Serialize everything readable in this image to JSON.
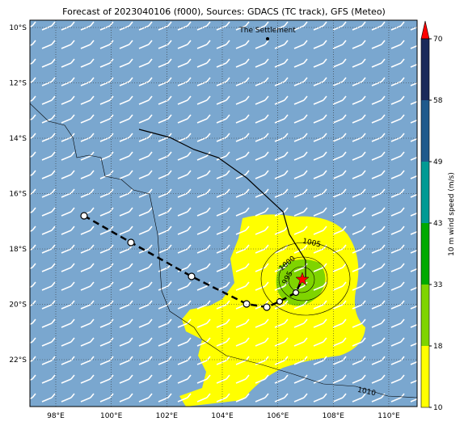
{
  "title": "Forecast of 2023040106 (f000), Sources: GDACS (TC track), GFS (Meteo)",
  "map": {
    "lat_ticks": [
      {
        "value": -10,
        "label": "10°S"
      },
      {
        "value": -12,
        "label": "12°S"
      },
      {
        "value": -14,
        "label": "14°S"
      },
      {
        "value": -16,
        "label": "16°S"
      },
      {
        "value": -18,
        "label": "18°S"
      },
      {
        "value": -20,
        "label": "20°S"
      },
      {
        "value": -22,
        "label": "22°S"
      }
    ],
    "lon_ticks": [
      {
        "value": 98,
        "label": "98°E"
      },
      {
        "value": 100,
        "label": "100°E"
      },
      {
        "value": 102,
        "label": "102°E"
      },
      {
        "value": 104,
        "label": "104°E"
      },
      {
        "value": 106,
        "label": "106°E"
      },
      {
        "value": 108,
        "label": "108°E"
      },
      {
        "value": 110,
        "label": "110°E"
      }
    ],
    "annotation": "The Settlement",
    "contour_labels": [
      "1005",
      "1000",
      "995",
      "1010"
    ]
  },
  "colorbar": {
    "label": "10 m wind speed (m/s)",
    "ticks": [
      10,
      18,
      33,
      43,
      49,
      58,
      70
    ],
    "colors": [
      "#ffff00",
      "#7fd400",
      "#00aa00",
      "#009a94",
      "#1f5a8c",
      "#1a2a5a"
    ],
    "extend_color": "#ff0000"
  }
}
